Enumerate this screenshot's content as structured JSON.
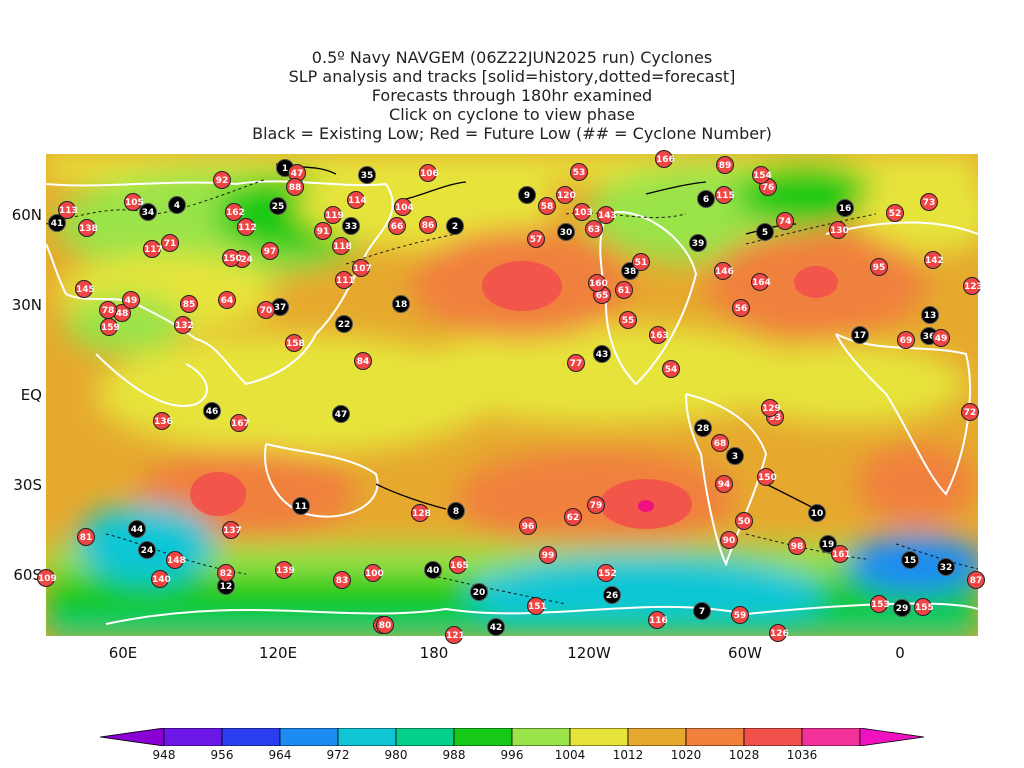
{
  "titles": [
    "0.5º Navy NAVGEM (06Z22JUN2025 run) Cyclones",
    "SLP analysis and tracks [solid=history,dotted=forecast]",
    "Forecasts through 180hr examined",
    "Click on cyclone to view phase",
    "Black = Existing Low; Red = Future Low (## = Cyclone Number)"
  ],
  "lat_labels": [
    "60N",
    "30N",
    "EQ",
    "30S",
    "60S"
  ],
  "lon_labels": [
    "60E",
    "120E",
    "180",
    "120W",
    "60W",
    "0"
  ],
  "colorbar": {
    "ticks": [
      "948",
      "956",
      "964",
      "972",
      "980",
      "988",
      "996",
      "1004",
      "1012",
      "1020",
      "1028",
      "1036"
    ],
    "colors": [
      "#8a00d4",
      "#6a17e8",
      "#2a3ef0",
      "#1b8cf2",
      "#10c6d6",
      "#05d08a",
      "#16c916",
      "#9ae34a",
      "#e6e43a",
      "#e6a92e",
      "#f0803c",
      "#f2504a",
      "#f2329a",
      "#f012c0"
    ]
  },
  "cyclones": [
    {
      "id": "1",
      "type": "existing"
    },
    {
      "id": "2",
      "type": "existing"
    },
    {
      "id": "3",
      "type": "existing"
    },
    {
      "id": "4",
      "type": "existing"
    },
    {
      "id": "5",
      "type": "existing"
    },
    {
      "id": "6",
      "type": "existing"
    },
    {
      "id": "7",
      "type": "existing"
    },
    {
      "id": "8",
      "type": "existing"
    },
    {
      "id": "9",
      "type": "existing"
    },
    {
      "id": "10",
      "type": "existing"
    },
    {
      "id": "11",
      "type": "existing"
    },
    {
      "id": "12",
      "type": "existing"
    },
    {
      "id": "13",
      "type": "existing"
    },
    {
      "id": "15",
      "type": "existing"
    },
    {
      "id": "16",
      "type": "existing"
    },
    {
      "id": "17",
      "type": "existing"
    },
    {
      "id": "18",
      "type": "existing"
    },
    {
      "id": "19",
      "type": "existing"
    },
    {
      "id": "20",
      "type": "existing"
    },
    {
      "id": "22",
      "type": "existing"
    },
    {
      "id": "24",
      "type": "existing"
    },
    {
      "id": "25",
      "type": "existing"
    },
    {
      "id": "26",
      "type": "existing"
    },
    {
      "id": "27",
      "type": "existing"
    },
    {
      "id": "28",
      "type": "existing"
    },
    {
      "id": "29",
      "type": "existing"
    },
    {
      "id": "30",
      "type": "existing"
    },
    {
      "id": "32",
      "type": "existing"
    },
    {
      "id": "33",
      "type": "existing"
    },
    {
      "id": "34",
      "type": "existing"
    },
    {
      "id": "35",
      "type": "existing"
    },
    {
      "id": "36",
      "type": "existing"
    },
    {
      "id": "37",
      "type": "existing"
    },
    {
      "id": "38",
      "type": "existing"
    },
    {
      "id": "39",
      "type": "existing"
    },
    {
      "id": "40",
      "type": "existing"
    },
    {
      "id": "41",
      "type": "existing"
    },
    {
      "id": "42",
      "type": "existing"
    },
    {
      "id": "43",
      "type": "existing"
    },
    {
      "id": "44",
      "type": "existing"
    },
    {
      "id": "46",
      "type": "existing"
    },
    {
      "id": "47",
      "type": "existing"
    },
    {
      "id": "47",
      "type": "future"
    },
    {
      "id": "48",
      "type": "future"
    },
    {
      "id": "49",
      "type": "future"
    },
    {
      "id": "49",
      "type": "future"
    },
    {
      "id": "50",
      "type": "future"
    },
    {
      "id": "51",
      "type": "future"
    },
    {
      "id": "52",
      "type": "future"
    },
    {
      "id": "53",
      "type": "future"
    },
    {
      "id": "54",
      "type": "future"
    },
    {
      "id": "55",
      "type": "future"
    },
    {
      "id": "56",
      "type": "future"
    },
    {
      "id": "57",
      "type": "future"
    },
    {
      "id": "58",
      "type": "future"
    },
    {
      "id": "59",
      "type": "future"
    },
    {
      "id": "60",
      "type": "future"
    },
    {
      "id": "61",
      "type": "future"
    },
    {
      "id": "62",
      "type": "future"
    },
    {
      "id": "63",
      "type": "future"
    },
    {
      "id": "64",
      "type": "future"
    },
    {
      "id": "65",
      "type": "future"
    },
    {
      "id": "66",
      "type": "future"
    },
    {
      "id": "68",
      "type": "future"
    },
    {
      "id": "69",
      "type": "future"
    },
    {
      "id": "70",
      "type": "future"
    },
    {
      "id": "71",
      "type": "future"
    },
    {
      "id": "72",
      "type": "future"
    },
    {
      "id": "73",
      "type": "future"
    },
    {
      "id": "74",
      "type": "future"
    },
    {
      "id": "76",
      "type": "future"
    },
    {
      "id": "77",
      "type": "future"
    },
    {
      "id": "78",
      "type": "future"
    },
    {
      "id": "79",
      "type": "future"
    },
    {
      "id": "80",
      "type": "future"
    },
    {
      "id": "81",
      "type": "future"
    },
    {
      "id": "82",
      "type": "future"
    },
    {
      "id": "83",
      "type": "future"
    },
    {
      "id": "84",
      "type": "future"
    },
    {
      "id": "85",
      "type": "future"
    },
    {
      "id": "86",
      "type": "future"
    },
    {
      "id": "87",
      "type": "future"
    },
    {
      "id": "88",
      "type": "future"
    },
    {
      "id": "89",
      "type": "future"
    },
    {
      "id": "90",
      "type": "future"
    },
    {
      "id": "91",
      "type": "future"
    },
    {
      "id": "92",
      "type": "future"
    },
    {
      "id": "93",
      "type": "future"
    },
    {
      "id": "94",
      "type": "future"
    },
    {
      "id": "95",
      "type": "future"
    },
    {
      "id": "96",
      "type": "future"
    },
    {
      "id": "97",
      "type": "future"
    },
    {
      "id": "98",
      "type": "future"
    },
    {
      "id": "99",
      "type": "future"
    },
    {
      "id": "100",
      "type": "future"
    },
    {
      "id": "103",
      "type": "future"
    },
    {
      "id": "104",
      "type": "future"
    },
    {
      "id": "105",
      "type": "future"
    },
    {
      "id": "106",
      "type": "future"
    },
    {
      "id": "107",
      "type": "future"
    },
    {
      "id": "109",
      "type": "future"
    },
    {
      "id": "111",
      "type": "future"
    },
    {
      "id": "112",
      "type": "future"
    },
    {
      "id": "113",
      "type": "future"
    },
    {
      "id": "114",
      "type": "future"
    },
    {
      "id": "115",
      "type": "future"
    },
    {
      "id": "116",
      "type": "future"
    },
    {
      "id": "117",
      "type": "future"
    },
    {
      "id": "118",
      "type": "future"
    },
    {
      "id": "119",
      "type": "future"
    },
    {
      "id": "120",
      "type": "future"
    },
    {
      "id": "121",
      "type": "future"
    },
    {
      "id": "123",
      "type": "future"
    },
    {
      "id": "124",
      "type": "future"
    },
    {
      "id": "126",
      "type": "future"
    },
    {
      "id": "128",
      "type": "future"
    },
    {
      "id": "129",
      "type": "future"
    },
    {
      "id": "130",
      "type": "future"
    },
    {
      "id": "132",
      "type": "future"
    },
    {
      "id": "136",
      "type": "future"
    },
    {
      "id": "137",
      "type": "future"
    },
    {
      "id": "138",
      "type": "future"
    },
    {
      "id": "139",
      "type": "future"
    },
    {
      "id": "140",
      "type": "future"
    },
    {
      "id": "142",
      "type": "future"
    },
    {
      "id": "143",
      "type": "future"
    },
    {
      "id": "145",
      "type": "future"
    },
    {
      "id": "146",
      "type": "future"
    },
    {
      "id": "148",
      "type": "future"
    },
    {
      "id": "150",
      "type": "future"
    },
    {
      "id": "150",
      "type": "future"
    },
    {
      "id": "151",
      "type": "future"
    },
    {
      "id": "152",
      "type": "future"
    },
    {
      "id": "153",
      "type": "future"
    },
    {
      "id": "154",
      "type": "future"
    },
    {
      "id": "155",
      "type": "future"
    },
    {
      "id": "158",
      "type": "future"
    },
    {
      "id": "159",
      "type": "future"
    },
    {
      "id": "160",
      "type": "future"
    },
    {
      "id": "161",
      "type": "future"
    },
    {
      "id": "162",
      "type": "future"
    },
    {
      "id": "163",
      "type": "future"
    },
    {
      "id": "164",
      "type": "future"
    },
    {
      "id": "165",
      "type": "future"
    },
    {
      "id": "166",
      "type": "future"
    },
    {
      "id": "167",
      "type": "future"
    }
  ]
}
